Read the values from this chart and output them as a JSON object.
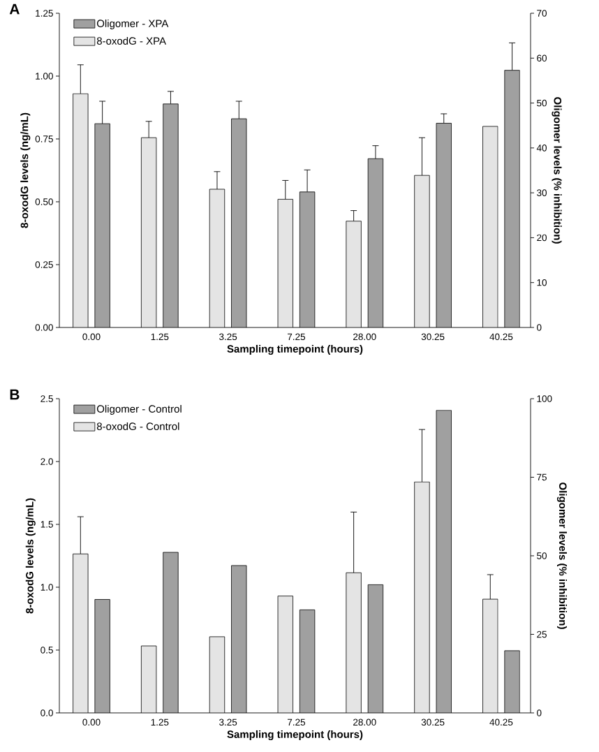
{
  "chart_data": [
    {
      "type": "bar",
      "title": "A",
      "xlabel": "Sampling timepoint (hours)",
      "ylabel": "8-oxodG levels (ng/mL)",
      "y2label": "Oligomer levels (% inhibition)",
      "legend": "top left",
      "categories": [
        "0.00",
        "1.25",
        "3.25",
        "7.25",
        "28.00",
        "30.25",
        "40.25"
      ],
      "series": [
        {
          "name": "Oligomer - XPA",
          "color": "#a0a0a0",
          "axis": "y2",
          "values": [
            45.4,
            49.8,
            46.5,
            30.2,
            37.6,
            45.5,
            57.3
          ],
          "errors": [
            5.0,
            2.8,
            3.9,
            4.9,
            2.9,
            2.1,
            6.1
          ]
        },
        {
          "name": "8-oxodG - XPA",
          "color": "#e4e4e4",
          "values": [
            0.93,
            0.755,
            0.55,
            0.51,
            0.423,
            0.605,
            0.8
          ],
          "errors": [
            0.115,
            0.065,
            0.07,
            0.075,
            0.042,
            0.15,
            null
          ]
        }
      ],
      "ylim": [
        0,
        1.25
      ],
      "yticks": [
        {
          "value": 0,
          "label": "0.00"
        },
        0.25,
        {
          "value": 0.5,
          "label": "0.50"
        },
        0.75,
        {
          "value": 1,
          "label": "1.00"
        },
        1.25
      ],
      "y2lim": [
        0,
        70
      ],
      "y2ticks": [
        0,
        10,
        20,
        30,
        40,
        50,
        60,
        70
      ]
    },
    {
      "type": "bar",
      "title": "B",
      "xlabel": "Sampling timepoint (hours)",
      "ylabel": "8-oxodG levels (ng/mL)",
      "y2label": "Oligomer levels (% inhibition)",
      "legend": "top left",
      "categories": [
        "0.00",
        "1.25",
        "3.25",
        "7.25",
        "28.00",
        "30.25",
        "40.25"
      ],
      "series": [
        {
          "name": "Oligomer - Control",
          "color": "#a0a0a0",
          "axis": "y2",
          "values": [
            36.1,
            51.1,
            46.9,
            32.8,
            40.8,
            96.3,
            19.8
          ]
        },
        {
          "name": "8-oxodG - Control",
          "color": "#e4e4e4",
          "values": [
            1.265,
            0.533,
            0.606,
            0.93,
            1.115,
            1.838,
            0.905
          ],
          "errors": [
            0.296,
            null,
            null,
            null,
            0.483,
            0.417,
            0.195
          ]
        }
      ],
      "ylim": [
        0,
        2.5
      ],
      "yticks": [
        {
          "value": 0,
          "label": "0.0"
        },
        0.5,
        {
          "value": 1,
          "label": "1.0"
        },
        1.5,
        {
          "value": 2,
          "label": "2.0"
        },
        2.5
      ],
      "y2lim": [
        0,
        100
      ],
      "y2ticks": [
        0,
        25,
        50,
        75,
        100
      ]
    }
  ]
}
